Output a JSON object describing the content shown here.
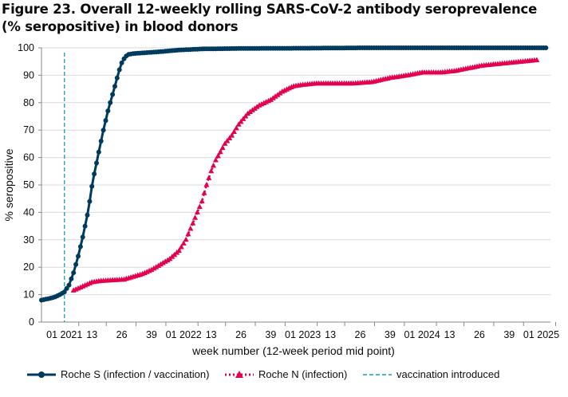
{
  "chart_data": {
    "type": "line",
    "title": "Figure 23. Overall 12-weekly rolling SARS-CoV-2 antibody seroprevalence (% seropositive) in blood donors",
    "xlabel": "week number (12-week period mid point)",
    "ylabel": "% seropositive",
    "ylim": [
      0,
      100
    ],
    "y_ticks": [
      0,
      10,
      20,
      30,
      40,
      50,
      60,
      70,
      80,
      90,
      100
    ],
    "grid": "horizontal",
    "legend_position": "bottom",
    "x_tick_labels": [
      {
        "label": "01 2021",
        "week_index": 0
      },
      {
        "label": "13",
        "week_index": 12
      },
      {
        "label": "26",
        "week_index": 25
      },
      {
        "label": "39",
        "week_index": 38
      },
      {
        "label": "01 2022",
        "week_index": 52
      },
      {
        "label": "13",
        "week_index": 64
      },
      {
        "label": "26",
        "week_index": 77
      },
      {
        "label": "39",
        "week_index": 90
      },
      {
        "label": "01 2023",
        "week_index": 104
      },
      {
        "label": "13",
        "week_index": 116
      },
      {
        "label": "26",
        "week_index": 129
      },
      {
        "label": "39",
        "week_index": 142
      },
      {
        "label": "01 2024",
        "week_index": 156
      },
      {
        "label": "13",
        "week_index": 168
      },
      {
        "label": "26",
        "week_index": 181
      },
      {
        "label": "39",
        "week_index": 194
      },
      {
        "label": "01 2025",
        "week_index": 208
      }
    ],
    "x_range": [
      -10,
      212
    ],
    "annotations": [
      {
        "type": "vertical-line",
        "x_week_index": 0,
        "name": "vaccination introduced",
        "color": "#12a2b5",
        "style": "dashed"
      }
    ],
    "series": [
      {
        "name": "Roche S (infection / vaccination)",
        "color": "#003a5c",
        "marker": "circle",
        "line": "solid",
        "points": [
          [
            -10,
            8
          ],
          [
            -7,
            8.5
          ],
          [
            -4,
            9.2
          ],
          [
            -2,
            10
          ],
          [
            0,
            11
          ],
          [
            2,
            13.5
          ],
          [
            4,
            18
          ],
          [
            6,
            24
          ],
          [
            8,
            31
          ],
          [
            9,
            35
          ],
          [
            10,
            39
          ],
          [
            11,
            44
          ],
          [
            12,
            49.5
          ],
          [
            13,
            54
          ],
          [
            14,
            58
          ],
          [
            15,
            62
          ],
          [
            16,
            66
          ],
          [
            17,
            70
          ],
          [
            18,
            73.5
          ],
          [
            19,
            77
          ],
          [
            20,
            80
          ],
          [
            21,
            83
          ],
          [
            22,
            86
          ],
          [
            23,
            89
          ],
          [
            24,
            92
          ],
          [
            25,
            94.5
          ],
          [
            26,
            96
          ],
          [
            27,
            97
          ],
          [
            28,
            97.6
          ],
          [
            30,
            97.9
          ],
          [
            35,
            98.2
          ],
          [
            42,
            98.6
          ],
          [
            50,
            99.2
          ],
          [
            60,
            99.6
          ],
          [
            80,
            99.8
          ],
          [
            104,
            99.85
          ],
          [
            130,
            100
          ],
          [
            160,
            100
          ],
          [
            185,
            100
          ],
          [
            210,
            100
          ]
        ]
      },
      {
        "name": "Roche N (infection)",
        "color": "#e40050",
        "marker": "triangle",
        "line": "dotted",
        "points": [
          [
            4,
            11.5
          ],
          [
            8,
            13
          ],
          [
            12,
            14.5
          ],
          [
            16,
            15
          ],
          [
            20,
            15.2
          ],
          [
            26,
            15.5
          ],
          [
            30,
            16.5
          ],
          [
            34,
            17.5
          ],
          [
            38,
            19
          ],
          [
            42,
            21
          ],
          [
            46,
            23
          ],
          [
            50,
            26
          ],
          [
            53,
            30
          ],
          [
            56,
            36
          ],
          [
            58,
            40
          ],
          [
            60,
            44
          ],
          [
            62,
            50
          ],
          [
            64,
            55
          ],
          [
            66,
            59
          ],
          [
            68,
            62
          ],
          [
            70,
            65
          ],
          [
            73,
            68
          ],
          [
            76,
            72
          ],
          [
            80,
            76
          ],
          [
            85,
            79
          ],
          [
            90,
            81
          ],
          [
            95,
            84
          ],
          [
            100,
            86
          ],
          [
            104,
            86.5
          ],
          [
            110,
            87
          ],
          [
            118,
            87
          ],
          [
            126,
            87
          ],
          [
            134,
            87.5
          ],
          [
            142,
            89
          ],
          [
            150,
            90
          ],
          [
            156,
            91
          ],
          [
            164,
            91
          ],
          [
            170,
            91.5
          ],
          [
            176,
            92.5
          ],
          [
            182,
            93.5
          ],
          [
            188,
            94
          ],
          [
            194,
            94.5
          ],
          [
            200,
            95
          ],
          [
            206,
            95.5
          ]
        ]
      }
    ]
  }
}
